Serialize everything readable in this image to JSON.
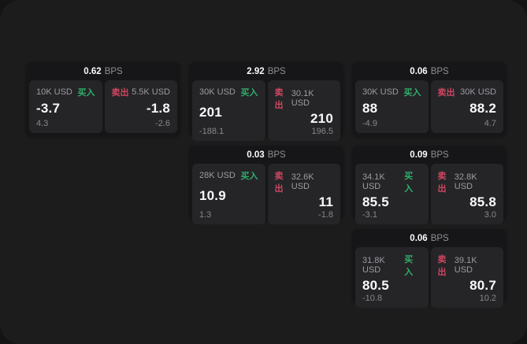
{
  "labels": {
    "bps_unit": "BPS",
    "buy": "买入",
    "sell": "卖出"
  },
  "colors": {
    "page_background": "#1c1c1d",
    "card_background": "#161618",
    "panel_background": "#252528",
    "buy_green": "#2fae6a",
    "sell_red": "#cf4660",
    "primary_text": "#fafafa",
    "secondary_text": "#9b9ba1"
  },
  "cards": [
    {
      "bps": "0.62",
      "buy": {
        "notional": "10K USD",
        "price": "-3.7",
        "delta": "4.3"
      },
      "sell": {
        "notional": "5.5K USD",
        "price": "-1.8",
        "delta": "-2.6"
      }
    },
    {
      "bps": "2.92",
      "buy": {
        "notional": "30K USD",
        "price": "201",
        "delta": "-188.1"
      },
      "sell": {
        "notional": "30.1K USD",
        "price": "210",
        "delta": "196.5"
      }
    },
    {
      "bps": "0.06",
      "buy": {
        "notional": "30K USD",
        "price": "88",
        "delta": "-4.9"
      },
      "sell": {
        "notional": "30K USD",
        "price": "88.2",
        "delta": "4.7"
      }
    },
    {
      "bps": "0.03",
      "buy": {
        "notional": "28K USD",
        "price": "10.9",
        "delta": "1.3"
      },
      "sell": {
        "notional": "32.6K USD",
        "price": "11",
        "delta": "-1.8"
      }
    },
    {
      "bps": "0.09",
      "buy": {
        "notional": "34.1K USD",
        "price": "85.5",
        "delta": "-3.1"
      },
      "sell": {
        "notional": "32.8K USD",
        "price": "85.8",
        "delta": "3.0"
      }
    },
    {
      "bps": "0.06",
      "buy": {
        "notional": "31.8K USD",
        "price": "80.5",
        "delta": "-10.8"
      },
      "sell": {
        "notional": "39.1K USD",
        "price": "80.7",
        "delta": "10.2"
      }
    }
  ]
}
